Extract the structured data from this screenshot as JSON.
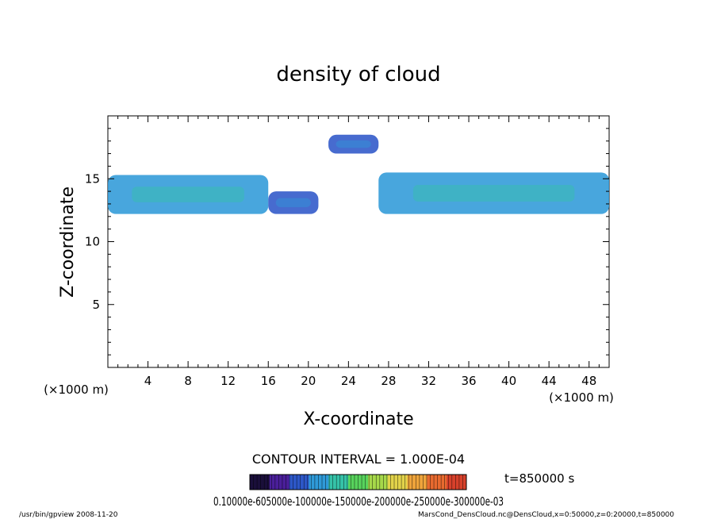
{
  "chart_data": {
    "type": "heatmap",
    "title": "density of cloud",
    "xlabel": "X-coordinate",
    "ylabel": "Z-coordinate",
    "x_unit": "(×1000 m)",
    "y_unit": "(×1000 m)",
    "xlim": [
      0,
      50
    ],
    "ylim": [
      0,
      20
    ],
    "x_ticks": [
      4,
      8,
      12,
      16,
      20,
      24,
      28,
      32,
      36,
      40,
      44,
      48
    ],
    "y_ticks": [
      5,
      10,
      15
    ],
    "time_label": "t=850000 s",
    "contour_interval": "CONTOUR INTERVAL = 1.000E-04",
    "colorbar_labels": "0.10000e-605000e-100000e-150000e-200000e-250000e-300000e-03",
    "colorbar_colors": [
      "#1a0f3a",
      "#4a1f9a",
      "#2d57c8",
      "#2f9ad8",
      "#35c2a8",
      "#57d35c",
      "#a6d84a",
      "#e2d34a",
      "#efa43b",
      "#e86a2f",
      "#d7412b"
    ],
    "regions": [
      {
        "name": "lower-band-left",
        "x_range": [
          0,
          16
        ],
        "z_range": [
          12.2,
          15.3
        ],
        "level": 0.25
      },
      {
        "name": "lower-band-middle",
        "x_range": [
          16,
          21
        ],
        "z_range": [
          12.2,
          14.0
        ],
        "level": 0.2
      },
      {
        "name": "lower-band-right",
        "x_range": [
          27,
          50
        ],
        "z_range": [
          12.2,
          15.5
        ],
        "level": 0.25
      },
      {
        "name": "upper-patch",
        "x_range": [
          22,
          27
        ],
        "z_range": [
          17.0,
          18.5
        ],
        "level": 0.2
      }
    ]
  },
  "footer": {
    "program": "/usr/bin/gpview   2008-11-20",
    "source": "MarsCond_DensCloud.nc@DensCloud,x=0:50000,z=0:20000,t=850000"
  }
}
